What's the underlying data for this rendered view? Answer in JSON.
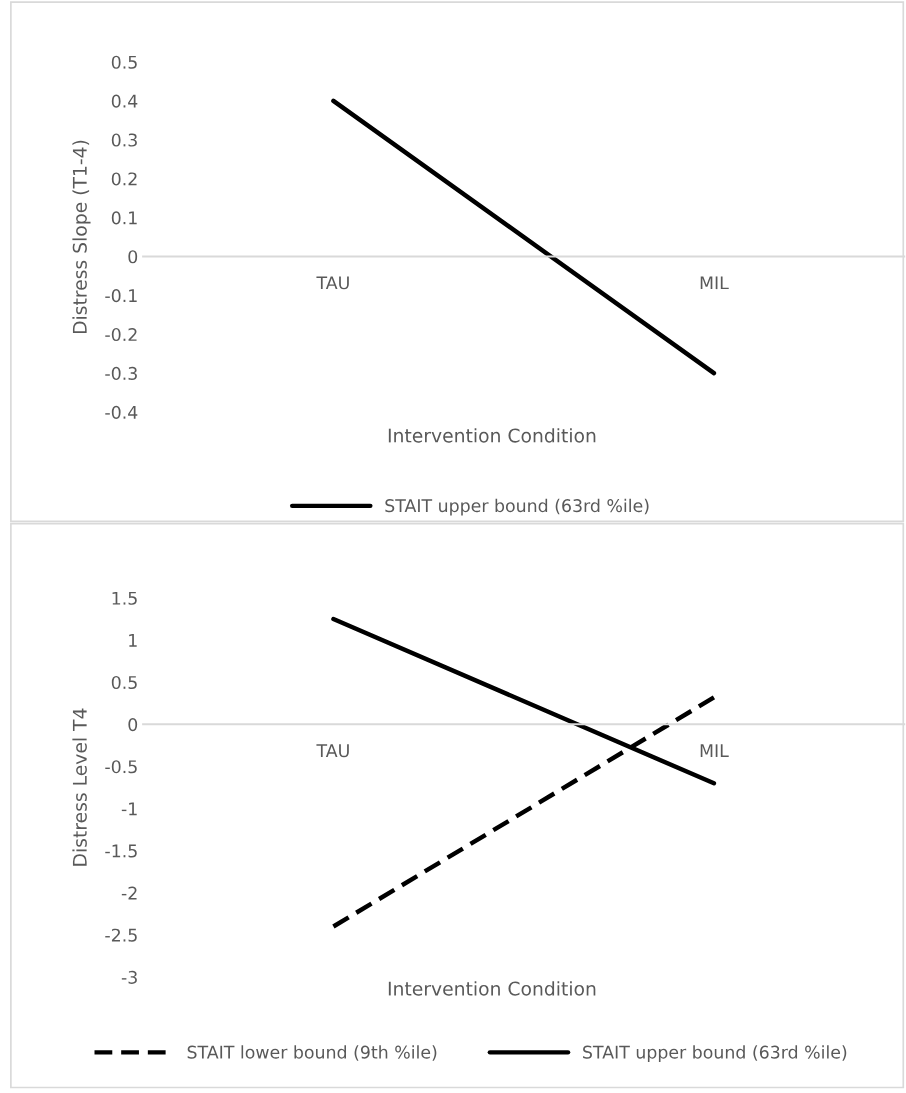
{
  "chart_data": [
    {
      "type": "line",
      "categories": [
        "TAU",
        "MIL"
      ],
      "xlabel": "Intervention Condition",
      "ylabel": "Distress Slope (T1-4)",
      "ylim": [
        -0.4,
        0.5
      ],
      "yticks": [
        -0.4,
        -0.3,
        -0.2,
        -0.1,
        0,
        0.1,
        0.2,
        0.3,
        0.4,
        0.5
      ],
      "grid": false,
      "legend": "bottom",
      "marker": "none",
      "series": [
        {
          "name": "STAIT upper bound (63rd %ile)",
          "color": "#000000",
          "line_style": "solid",
          "values": [
            0.4,
            -0.3
          ]
        }
      ]
    },
    {
      "type": "line",
      "categories": [
        "TAU",
        "MIL"
      ],
      "xlabel": "Intervention Condition",
      "ylabel": "Distress Level T4",
      "ylim": [
        -3,
        1.5
      ],
      "yticks": [
        -3,
        -2.5,
        -2,
        -1.5,
        -1,
        -0.5,
        0,
        0.5,
        1,
        1.5
      ],
      "grid": false,
      "legend": "bottom",
      "marker": "none",
      "series": [
        {
          "name": "STAIT lower bound (9th %ile)",
          "color": "#000000",
          "line_style": "dashed",
          "values": [
            -2.4,
            0.32
          ]
        },
        {
          "name": "STAIT upper bound (63rd %ile)",
          "color": "#000000",
          "line_style": "solid",
          "values": [
            1.25,
            -0.7
          ]
        }
      ]
    }
  ]
}
